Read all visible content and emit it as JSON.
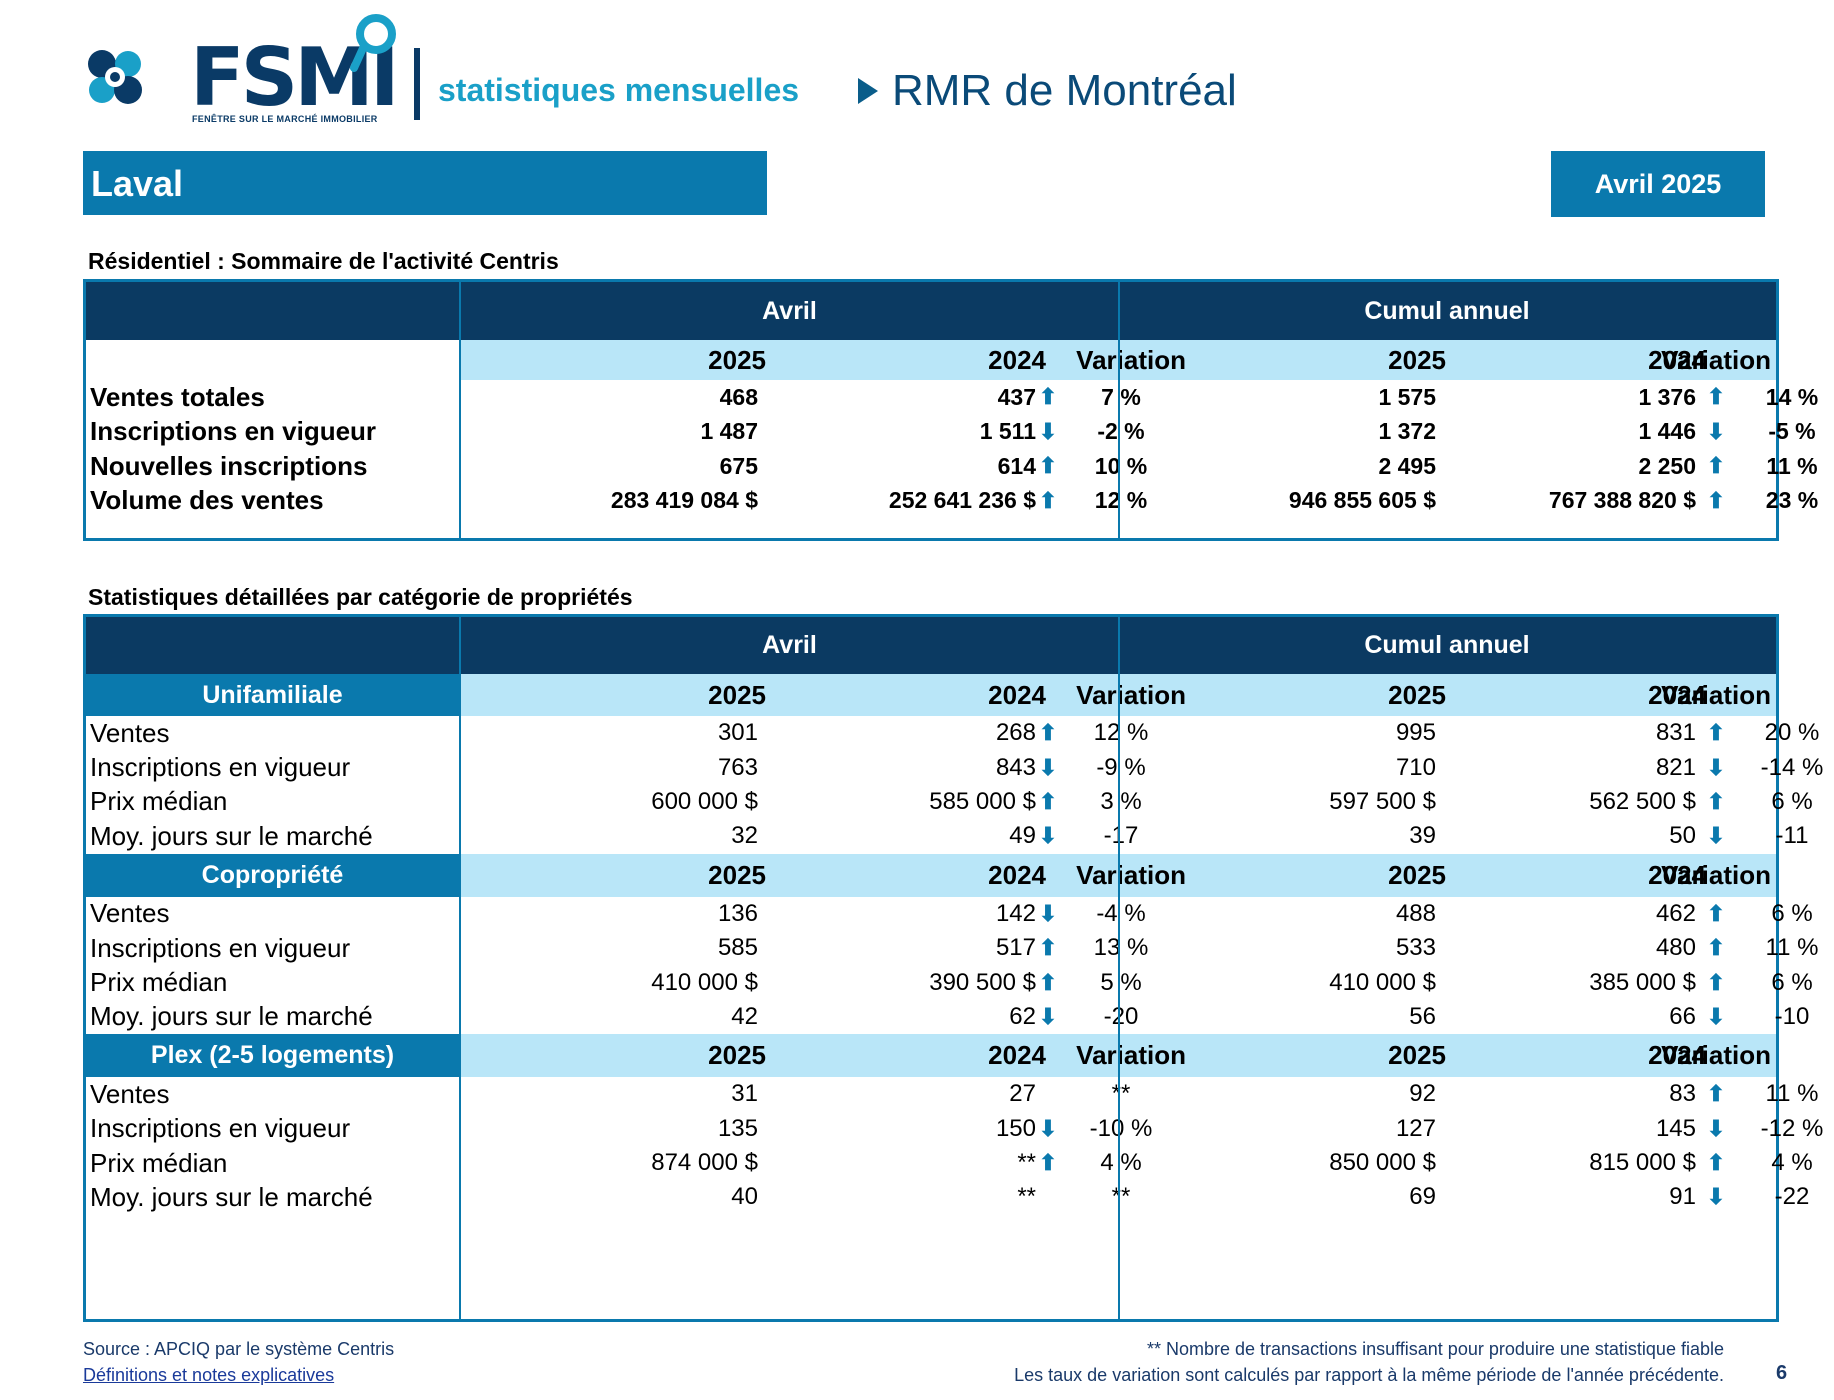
{
  "header": {
    "logo_text": "FSMI",
    "logo_subtext": "FENÊTRE SUR LE MARCHÉ IMMOBILIER",
    "subtitle": "statistiques mensuelles",
    "region": "RMR de Montréal"
  },
  "city": "Laval",
  "period": "Avril 2025",
  "summary": {
    "title": "Résidentiel : Sommaire de l'activité Centris",
    "group_month": "Avril",
    "group_ytd": "Cumul annuel",
    "col_2025": "2025",
    "col_2024": "2024",
    "col_var": "Variation",
    "rows": [
      {
        "label": "Ventes totales",
        "m25": "468",
        "m24": "437",
        "m_dir": "up",
        "m_var": "7 %",
        "y25": "1 575",
        "y24": "1 376",
        "y_dir": "up",
        "y_var": "14 %"
      },
      {
        "label": "Inscriptions en vigueur",
        "m25": "1 487",
        "m24": "1 511",
        "m_dir": "down",
        "m_var": "-2 %",
        "y25": "1 372",
        "y24": "1 446",
        "y_dir": "down",
        "y_var": "-5 %"
      },
      {
        "label": "Nouvelles inscriptions",
        "m25": "675",
        "m24": "614",
        "m_dir": "up",
        "m_var": "10 %",
        "y25": "2 495",
        "y24": "2 250",
        "y_dir": "up",
        "y_var": "11 %"
      },
      {
        "label": "Volume des ventes",
        "m25": "283 419 084  $",
        "m24": "252 641 236  $",
        "m_dir": "up",
        "m_var": "12 %",
        "y25": "946 855 605  $",
        "y24": "767 388 820  $",
        "y_dir": "up",
        "y_var": "23 %"
      }
    ]
  },
  "detail": {
    "title": "Statistiques détaillées par catégorie de propriétés",
    "group_month": "Avril",
    "group_ytd": "Cumul annuel",
    "categories": [
      {
        "name": "Unifamiliale",
        "rows": [
          {
            "label": "Ventes",
            "m25": "301",
            "m24": "268",
            "m_dir": "up",
            "m_var": "12 %",
            "y25": "995",
            "y24": "831",
            "y_dir": "up",
            "y_var": "20 %"
          },
          {
            "label": "Inscriptions en vigueur",
            "m25": "763",
            "m24": "843",
            "m_dir": "down",
            "m_var": "-9 %",
            "y25": "710",
            "y24": "821",
            "y_dir": "down",
            "y_var": "-14 %"
          },
          {
            "label": "Prix médian",
            "m25": "600 000 $",
            "m24": "585 000 $",
            "m_dir": "up",
            "m_var": "3 %",
            "y25": "597 500 $",
            "y24": "562 500 $",
            "y_dir": "up",
            "y_var": "6 %"
          },
          {
            "label": "Moy. jours sur le marché",
            "m25": "32",
            "m24": "49",
            "m_dir": "down",
            "m_var": "-17",
            "y25": "39",
            "y24": "50",
            "y_dir": "down",
            "y_var": "-11"
          }
        ]
      },
      {
        "name": "Copropriété",
        "rows": [
          {
            "label": "Ventes",
            "m25": "136",
            "m24": "142",
            "m_dir": "down",
            "m_var": "-4 %",
            "y25": "488",
            "y24": "462",
            "y_dir": "up",
            "y_var": "6 %"
          },
          {
            "label": "Inscriptions en vigueur",
            "m25": "585",
            "m24": "517",
            "m_dir": "up",
            "m_var": "13 %",
            "y25": "533",
            "y24": "480",
            "y_dir": "up",
            "y_var": "11 %"
          },
          {
            "label": "Prix médian",
            "m25": "410 000 $",
            "m24": "390 500 $",
            "m_dir": "up",
            "m_var": "5 %",
            "y25": "410 000 $",
            "y24": "385 000 $",
            "y_dir": "up",
            "y_var": "6 %"
          },
          {
            "label": "Moy. jours sur le marché",
            "m25": "42",
            "m24": "62",
            "m_dir": "down",
            "m_var": "-20",
            "y25": "56",
            "y24": "66",
            "y_dir": "down",
            "y_var": "-10"
          }
        ]
      },
      {
        "name": "Plex (2-5 logements)",
        "rows": [
          {
            "label": "Ventes",
            "m25": "31",
            "m24": "27",
            "m_dir": "",
            "m_var": "**",
            "y25": "92",
            "y24": "83",
            "y_dir": "up",
            "y_var": "11 %"
          },
          {
            "label": "Inscriptions en vigueur",
            "m25": "135",
            "m24": "150",
            "m_dir": "down",
            "m_var": "-10 %",
            "y25": "127",
            "y24": "145",
            "y_dir": "down",
            "y_var": "-12 %"
          },
          {
            "label": "Prix médian",
            "m25": "874 000 $",
            "m24": "**",
            "m_dir": "up",
            "m_var": "4 %",
            "y25": "850 000 $",
            "y24": "815 000 $",
            "y_dir": "up",
            "y_var": "4 %"
          },
          {
            "label": "Moy. jours sur le marché",
            "m25": "40",
            "m24": "**",
            "m_dir": "",
            "m_var": "**",
            "y25": "69",
            "y24": "91",
            "y_dir": "down",
            "y_var": "-22"
          }
        ]
      }
    ]
  },
  "footer": {
    "source": "Source : APCIQ par le système Centris",
    "link": "Définitions et notes explicatives",
    "note1": "** Nombre de transactions insuffisant pour produire une statistique fiable",
    "note2": "Les taux de variation sont calculés par rapport à la même période de l'année précédente.",
    "page": "6"
  },
  "colors": {
    "dark": "#0b3a62",
    "accent": "#0a79ad",
    "light": "#b9e6f8"
  }
}
